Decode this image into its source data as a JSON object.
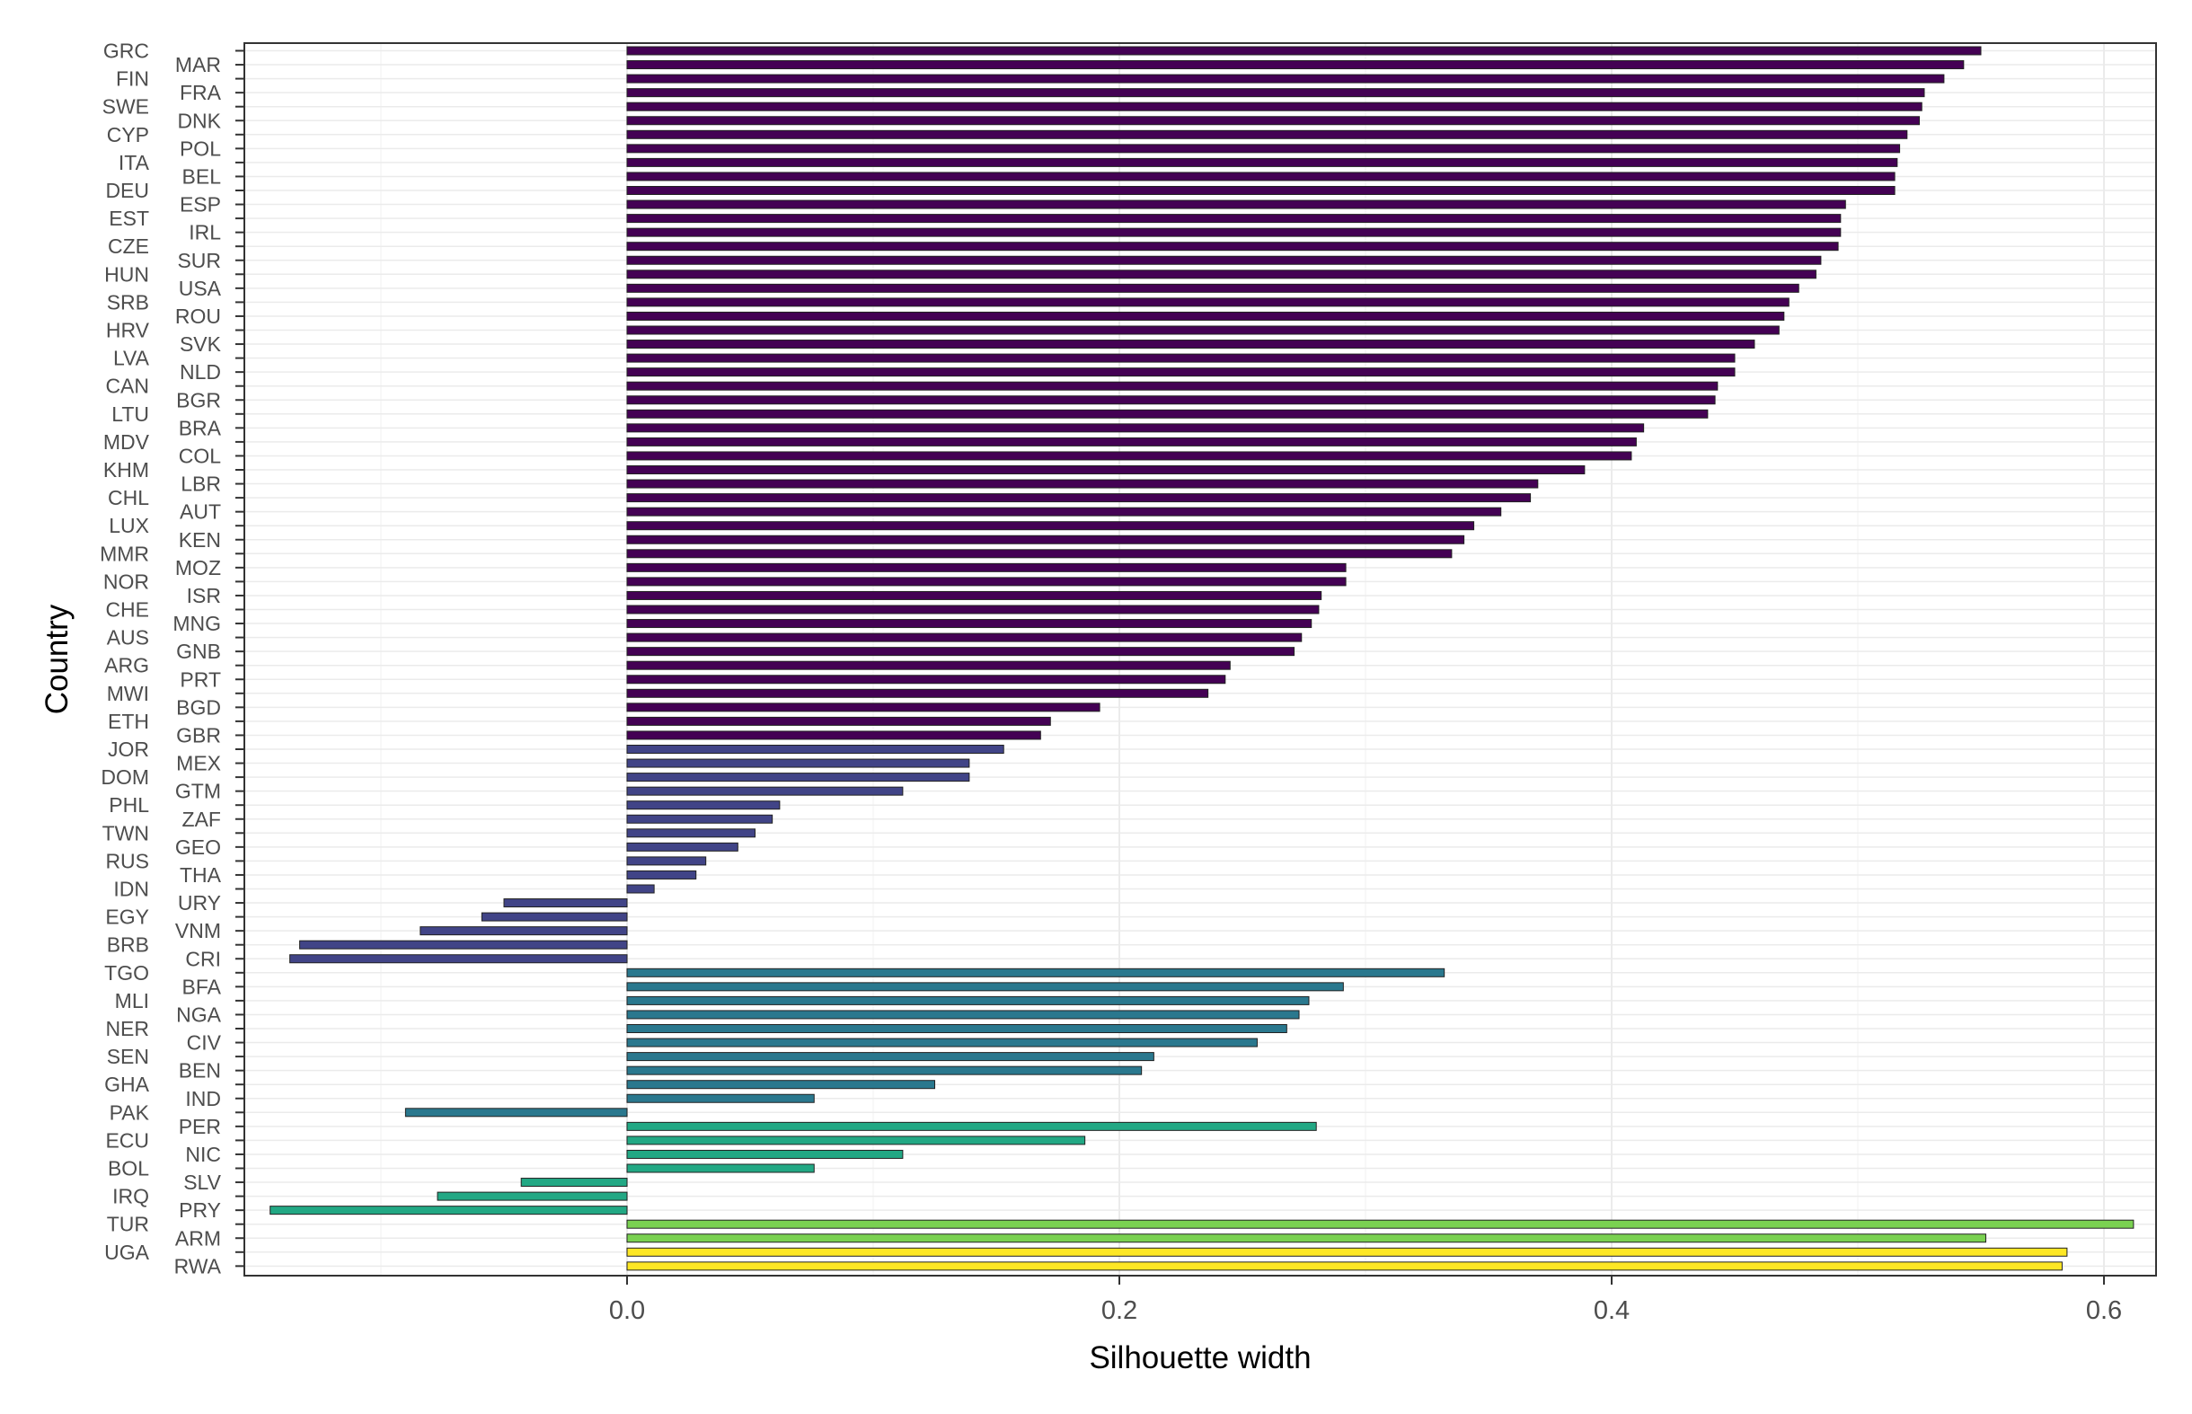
{
  "chart_data": {
    "type": "bar",
    "orientation": "horizontal",
    "xlabel": "Silhouette width",
    "ylabel": "Country",
    "xlim": [
      -0.155,
      0.62
    ],
    "x_ticks": [
      "0.0",
      "0.2",
      "0.4",
      "0.6"
    ],
    "x_tick_values": [
      0.0,
      0.2,
      0.4,
      0.6
    ],
    "grid": true,
    "legend": "none",
    "categories": [
      "GRC",
      "MAR",
      "FIN",
      "FRA",
      "SWE",
      "DNK",
      "CYP",
      "POL",
      "ITA",
      "BEL",
      "DEU",
      "ESP",
      "EST",
      "IRL",
      "CZE",
      "SUR",
      "HUN",
      "USA",
      "SRB",
      "ROU",
      "HRV",
      "SVK",
      "LVA",
      "NLD",
      "CAN",
      "BGR",
      "LTU",
      "BRA",
      "MDV",
      "COL",
      "KHM",
      "LBR",
      "CHL",
      "AUT",
      "LUX",
      "KEN",
      "MMR",
      "MOZ",
      "NOR",
      "ISR",
      "CHE",
      "MNG",
      "AUS",
      "GNB",
      "ARG",
      "PRT",
      "MWI",
      "BGD",
      "ETH",
      "GBR",
      "JOR",
      "MEX",
      "DOM",
      "GTM",
      "PHL",
      "ZAF",
      "TWN",
      "GEO",
      "RUS",
      "THA",
      "IDN",
      "URY",
      "EGY",
      "VNM",
      "BRB",
      "CRI",
      "TGO",
      "BFA",
      "MLI",
      "NGA",
      "NER",
      "CIV",
      "SEN",
      "BEN",
      "GHA",
      "IND",
      "PAK",
      "PER",
      "ECU",
      "NIC",
      "BOL",
      "SLV",
      "IRQ",
      "PRY",
      "TUR",
      "ARM",
      "UGA",
      "RWA"
    ],
    "values": [
      0.55,
      0.543,
      0.535,
      0.527,
      0.526,
      0.525,
      0.52,
      0.517,
      0.516,
      0.515,
      0.515,
      0.495,
      0.493,
      0.493,
      0.492,
      0.485,
      0.483,
      0.476,
      0.472,
      0.47,
      0.468,
      0.458,
      0.45,
      0.45,
      0.443,
      0.442,
      0.439,
      0.413,
      0.41,
      0.408,
      0.389,
      0.37,
      0.367,
      0.355,
      0.344,
      0.34,
      0.335,
      0.292,
      0.292,
      0.282,
      0.281,
      0.278,
      0.274,
      0.271,
      0.245,
      0.243,
      0.236,
      0.192,
      0.172,
      0.168,
      0.153,
      0.139,
      0.139,
      0.112,
      0.062,
      0.059,
      0.052,
      0.045,
      0.032,
      0.028,
      0.011,
      -0.05,
      -0.059,
      -0.084,
      -0.133,
      -0.137,
      0.332,
      0.291,
      0.277,
      0.273,
      0.268,
      0.256,
      0.214,
      0.209,
      0.125,
      0.076,
      -0.09,
      0.28,
      0.186,
      0.112,
      0.076,
      -0.043,
      -0.077,
      -0.145,
      0.612,
      0.552,
      0.585,
      0.583
    ],
    "cluster_colors": [
      "#440154",
      "#414487",
      "#2a788e",
      "#22a884",
      "#7ad151",
      "#fde725"
    ],
    "cluster_sizes": [
      50,
      16,
      11,
      7,
      2,
      2
    ]
  }
}
